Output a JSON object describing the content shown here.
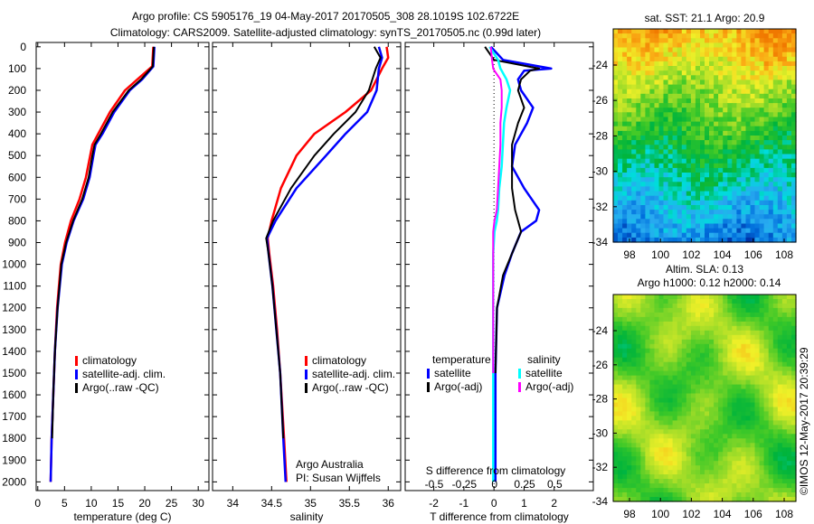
{
  "title_line1": "Argo profile: CS 5905176_19 04-May-2017 20170505_308 28.1019S 102.6722E",
  "title_line2": "Climatology: CARS2009. Satellite-adjusted climatology: synTS_20170505.nc (0.99d later)",
  "stamp": "©IMOS 12-May-2017 20:39:29",
  "colors": {
    "climatology": "#ff0000",
    "satellite": "#0000ff",
    "argo": "#000000",
    "sal_satellite": "#00ffff",
    "sal_argo": "#ff00ff"
  },
  "chart_data": [
    {
      "type": "line",
      "name": "temperature",
      "xlabel": "temperature (deg C)",
      "ylabel": "",
      "xlim": [
        -0.3,
        32
      ],
      "ylim": [
        2040,
        -20
      ],
      "xticks": [
        "0",
        "5",
        "10",
        "15",
        "20",
        "25",
        "30"
      ],
      "xtick_values": [
        0,
        5,
        10,
        15,
        20,
        25,
        30
      ],
      "yticks": [
        "0",
        "100",
        "200",
        "300",
        "400",
        "500",
        "600",
        "700",
        "800",
        "900",
        "1000",
        "1100",
        "1200",
        "1300",
        "1400",
        "1500",
        "1600",
        "1700",
        "1800",
        "1900",
        "2000"
      ],
      "legend": [
        "climatology",
        "satellite-adj. clim.",
        "Argo(..raw -QC)"
      ],
      "depth": [
        0,
        90,
        150,
        200,
        300,
        400,
        450,
        500,
        600,
        700,
        800,
        900,
        1000,
        1200,
        1400,
        1600,
        1800,
        2000
      ],
      "series": [
        {
          "name": "climatology",
          "values": [
            21.6,
            21.4,
            18.6,
            16.3,
            13.5,
            11.3,
            10.2,
            9.8,
            9.0,
            7.8,
            6.2,
            5.1,
            4.3,
            3.6,
            3.2,
            2.9,
            2.6,
            2.4
          ]
        },
        {
          "name": "satellite-adj. clim.",
          "values": [
            21.8,
            21.6,
            19.5,
            17.2,
            14.3,
            12.1,
            10.8,
            10.4,
            9.7,
            8.5,
            6.7,
            5.4,
            4.5,
            3.7,
            3.2,
            2.9,
            2.6,
            2.4
          ]
        },
        {
          "name": "Argo(..raw -QC)",
          "values": [
            21.7,
            21.5,
            19.3,
            17.0,
            14.0,
            11.8,
            10.6,
            10.2,
            9.5,
            8.3,
            6.6,
            5.3,
            4.4,
            3.7,
            3.2,
            2.9,
            2.7,
            null
          ]
        }
      ]
    },
    {
      "type": "line",
      "name": "salinity",
      "xlabel": "salinity",
      "xlim": [
        33.74,
        36.16
      ],
      "ylim": [
        2040,
        -20
      ],
      "xticks": [
        "34",
        "34.5",
        "35",
        "35.5",
        "36"
      ],
      "xtick_values": [
        34,
        34.5,
        35,
        35.5,
        36
      ],
      "legend": [
        "climatology",
        "satellite-adj. clim.",
        "Argo(..raw -QC)"
      ],
      "annotation": [
        "Argo Australia",
        "PI: Susan Wijffels"
      ],
      "depth": [
        0,
        50,
        100,
        200,
        300,
        400,
        500,
        650,
        800,
        880,
        950,
        1100,
        1300,
        1500,
        1800,
        2000
      ],
      "series": [
        {
          "name": "climatology",
          "values": [
            35.98,
            36.0,
            35.92,
            35.78,
            35.45,
            35.05,
            34.82,
            34.62,
            34.5,
            34.45,
            34.47,
            34.52,
            34.57,
            34.61,
            34.66,
            34.69
          ]
        },
        {
          "name": "satellite-adj. clim.",
          "values": [
            35.88,
            35.92,
            35.88,
            35.85,
            35.73,
            35.45,
            35.2,
            34.82,
            34.55,
            34.44,
            34.46,
            34.51,
            34.56,
            34.61,
            34.65,
            34.68
          ]
        },
        {
          "name": "Argo(..raw -QC)",
          "values": [
            35.82,
            35.9,
            35.84,
            35.75,
            35.58,
            35.3,
            35.05,
            34.75,
            34.52,
            34.43,
            34.46,
            34.51,
            34.56,
            34.61,
            34.65,
            null
          ]
        }
      ]
    },
    {
      "type": "line",
      "name": "difference",
      "xlabel": "T difference from climatology",
      "x2label": "S difference from climatology",
      "xlim": [
        -2.95,
        3.3
      ],
      "x2lim": [
        -0.74,
        0.82
      ],
      "ylim": [
        2040,
        -20
      ],
      "xticks": [
        "-2",
        "-1",
        "0",
        "1",
        "2"
      ],
      "xtick_values": [
        -2,
        -1,
        0,
        1,
        2
      ],
      "x2ticks": [
        "-0.5",
        "-0.25",
        "0",
        "0.25",
        "0.5"
      ],
      "x2tick_values": [
        -0.5,
        -0.25,
        0,
        0.25,
        0.5
      ],
      "legend_headers": [
        "temperature",
        "salinity"
      ],
      "legend": [
        "satellite",
        "Argo(-adj)",
        "satellite",
        "Argo(-adj)"
      ],
      "depth": [
        0,
        60,
        100,
        110,
        150,
        200,
        280,
        350,
        450,
        550,
        650,
        750,
        800,
        850,
        950,
        1050,
        1200,
        1500,
        2000
      ],
      "series": [
        {
          "name": "T satellite",
          "values": [
            -0.1,
            0.3,
            1.9,
            1.0,
            0.8,
            0.9,
            1.3,
            1.1,
            0.7,
            0.6,
            1.0,
            1.5,
            1.4,
            0.9,
            0.6,
            0.35,
            0.1,
            0.05,
            0.05
          ]
        },
        {
          "name": "T Argo(-adj)",
          "values": [
            -0.3,
            0.0,
            1.5,
            1.2,
            0.9,
            0.8,
            1.0,
            0.8,
            0.6,
            0.6,
            0.6,
            0.7,
            0.8,
            0.9,
            0.6,
            0.3,
            0.1,
            0.05,
            null
          ]
        },
        {
          "name": "S satellite",
          "values": [
            -0.04,
            0.03,
            0.05,
            0.06,
            0.1,
            0.13,
            0.1,
            0.08,
            0.07,
            0.06,
            0.04,
            0.03,
            0.02,
            0.0,
            -0.01,
            -0.01,
            -0.01,
            -0.01,
            -0.01
          ]
        },
        {
          "name": "S Argo(-adj)",
          "values": [
            -0.03,
            -0.02,
            -0.01,
            0.0,
            0.05,
            0.06,
            0.06,
            0.05,
            0.05,
            0.04,
            0.03,
            0.02,
            0.0,
            -0.01,
            -0.01,
            -0.01,
            -0.01,
            -0.01,
            null
          ]
        }
      ]
    },
    {
      "type": "heatmap",
      "name": "sst_map",
      "title": "sat. SST: 21.1  Argo: 20.9",
      "xticks": [
        "98",
        "100",
        "102",
        "104",
        "106",
        "108"
      ],
      "yticks": [
        "-24",
        "-26",
        "-28",
        "-30",
        "-32",
        "-34"
      ]
    },
    {
      "type": "heatmap",
      "name": "sla_map",
      "title": [
        "Altim. SLA: 0.13",
        "Argo h1000: 0.12 h2000: 0.14"
      ],
      "xticks": [
        "98",
        "100",
        "102",
        "104",
        "106",
        "108"
      ],
      "yticks": [
        "-24",
        "-26",
        "-28",
        "-30",
        "-32",
        "-34"
      ]
    }
  ]
}
